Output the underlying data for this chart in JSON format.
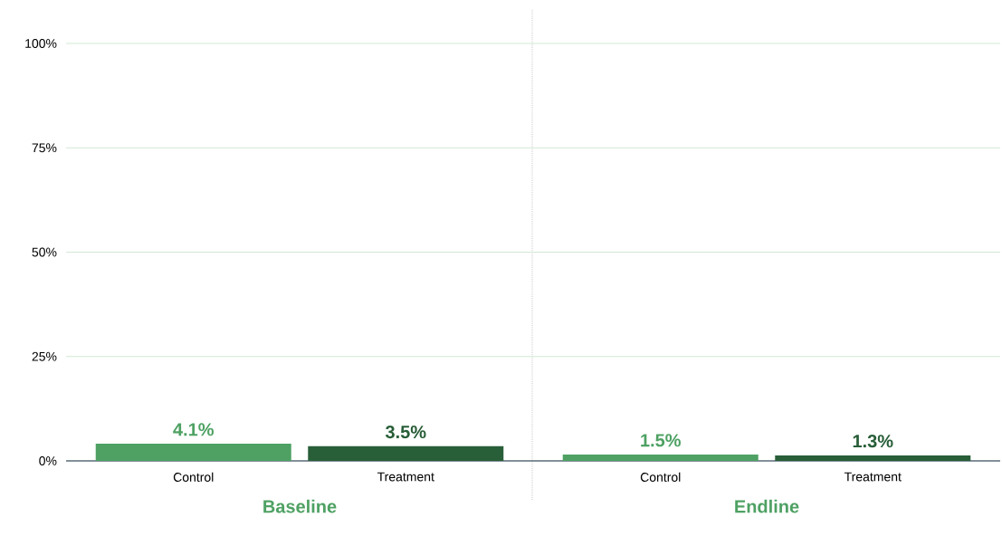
{
  "chart_data": [
    {
      "type": "bar",
      "xlabel": "Baseline",
      "categories": [
        "Control",
        "Treatment"
      ],
      "values": [
        4.1,
        3.5
      ],
      "colors": [
        "#4ea163",
        "#285e38"
      ],
      "value_labels": [
        "4.1%",
        "3.5%"
      ],
      "ylim": [
        0,
        100
      ],
      "yticks": [
        {
          "value": 0,
          "label": "0%"
        },
        {
          "value": 25,
          "label": "25%"
        },
        {
          "value": 50,
          "label": "50%"
        },
        {
          "value": 75,
          "label": "75%"
        },
        {
          "value": 100,
          "label": "100%"
        }
      ],
      "grid": "y"
    },
    {
      "type": "bar",
      "xlabel": "Endline",
      "categories": [
        "Control",
        "Treatment"
      ],
      "values": [
        1.5,
        1.3
      ],
      "colors": [
        "#4ea163",
        "#285e38"
      ],
      "value_labels": [
        "1.5%",
        "1.3%"
      ],
      "ylim": [
        0,
        100
      ],
      "yticks": [
        0,
        25,
        50,
        75,
        100
      ],
      "grid": "y",
      "tick_labels": "x"
    }
  ]
}
